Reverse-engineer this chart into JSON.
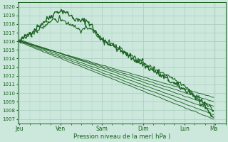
{
  "xlabel": "Pression niveau de la mer( hPa )",
  "ylim": [
    1006.5,
    1020.5
  ],
  "yticks": [
    1007,
    1008,
    1009,
    1010,
    1011,
    1012,
    1013,
    1014,
    1015,
    1016,
    1017,
    1018,
    1019,
    1020
  ],
  "xtick_labels": [
    "Jeu",
    "Ven",
    "Sam",
    "Dim",
    "Lun",
    "Ma"
  ],
  "xtick_positions": [
    0,
    24,
    48,
    72,
    96,
    113
  ],
  "xlim": [
    -1,
    120
  ],
  "bg_color": "#cce8dc",
  "grid_color": "#a8ccbc",
  "line_color": "#1a6020",
  "line_width": 0.7,
  "smooth_lines": [
    [
      1015.9,
      1007.0
    ],
    [
      1016.0,
      1007.5
    ],
    [
      1016.1,
      1008.0
    ],
    [
      1016.2,
      1008.5
    ],
    [
      1016.1,
      1009.0
    ],
    [
      1016.0,
      1009.5
    ]
  ],
  "minor_x_step": 6
}
